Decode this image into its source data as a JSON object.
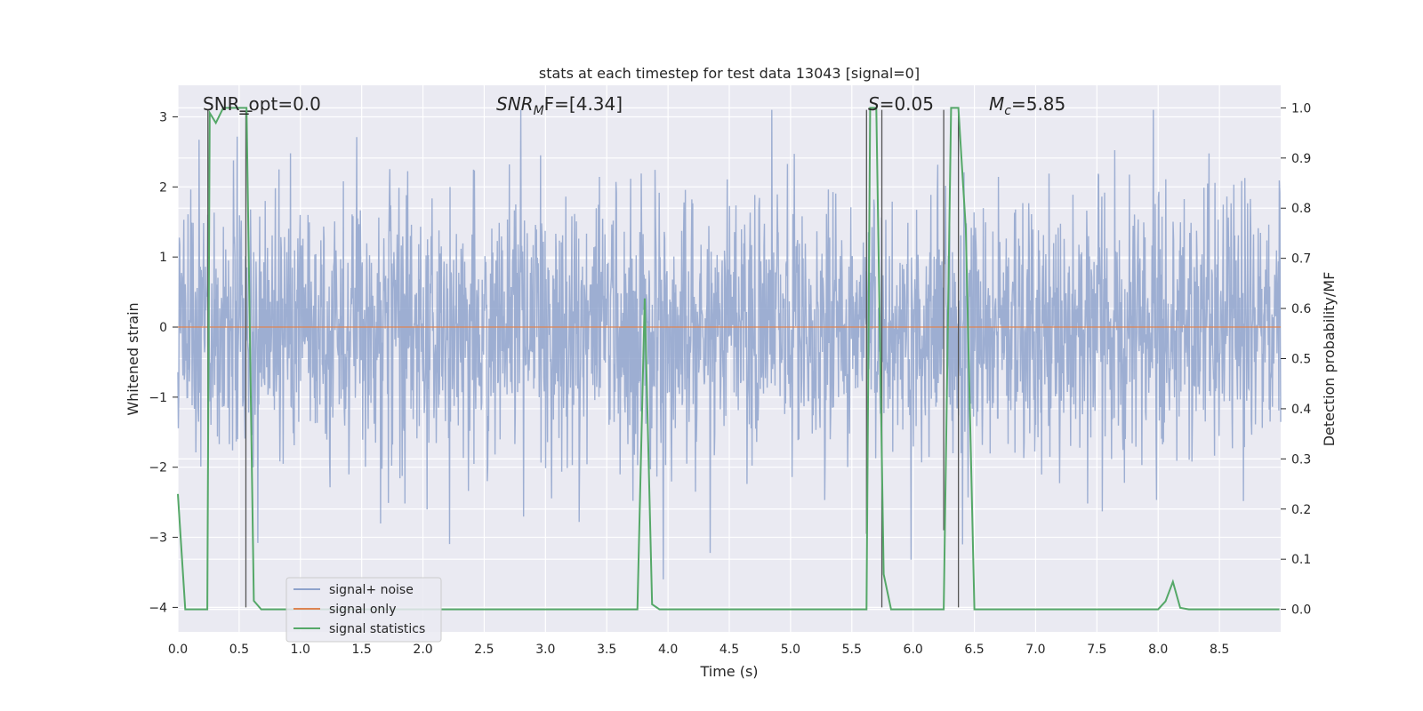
{
  "chart_data": {
    "type": "line",
    "title": "stats at each timestep for test data 13043 [signal=0]",
    "xlabel": "Time (s)",
    "ylabel": "Whitened strain",
    "y2label": "Detection probability/MF",
    "xlim": [
      0.0,
      9.0
    ],
    "ylim": [
      -4.35,
      3.45
    ],
    "y2lim": [
      -0.045,
      1.045
    ],
    "x_ticks": [
      0.0,
      0.5,
      1.0,
      1.5,
      2.0,
      2.5,
      3.0,
      3.5,
      4.0,
      4.5,
      5.0,
      5.5,
      6.0,
      6.5,
      7.0,
      7.5,
      8.0,
      8.5
    ],
    "x_tick_labels": [
      "0.0",
      "0.5",
      "1.0",
      "1.5",
      "2.0",
      "2.5",
      "3.0",
      "3.5",
      "4.0",
      "4.5",
      "5.0",
      "5.5",
      "6.0",
      "6.5",
      "7.0",
      "7.5",
      "8.0",
      "8.5"
    ],
    "y_ticks": [
      3,
      2,
      1,
      0,
      -1,
      -2,
      -3,
      -4
    ],
    "y_tick_labels": [
      "3",
      "2",
      "1",
      "0",
      "−1",
      "−2",
      "−3",
      "−4"
    ],
    "y2_ticks": [
      1.0,
      0.9,
      0.8,
      0.7,
      0.6,
      0.5,
      0.4,
      0.3,
      0.2,
      0.1,
      0.0
    ],
    "y2_tick_labels": [
      "1.0",
      "0.9",
      "0.8",
      "0.7",
      "0.6",
      "0.5",
      "0.4",
      "0.3",
      "0.2",
      "0.1",
      "0.0"
    ],
    "grid": true,
    "legend_position": "lower-left",
    "annotations": {
      "snr_opt": "SNR_opt=0.0",
      "snr_mf_var": "SNR",
      "snr_mf_sub": "M",
      "snr_mf_rest": "F=[4.34]",
      "s_var": "S",
      "s_rest": "=0.05",
      "mc_var": "M",
      "mc_sub": "c",
      "mc_rest": "=5.85"
    },
    "series": [
      {
        "name": "signal+ noise",
        "color": "#8fa3cc",
        "kind": "noise",
        "x_range": [
          0.0,
          9.0
        ],
        "envelope": 1.85
      },
      {
        "name": "signal only",
        "color": "#dd8452",
        "kind": "constant",
        "value": 0.0
      },
      {
        "name": "signal statistics",
        "color": "#55a868",
        "axis": "right",
        "x": [
          0.0,
          0.06,
          0.12,
          0.24,
          0.26,
          0.31,
          0.37,
          0.56,
          0.62,
          0.68,
          3.75,
          3.81,
          3.87,
          3.93,
          5.62,
          5.65,
          5.7,
          5.76,
          5.82,
          5.87,
          6.25,
          6.31,
          6.37,
          6.43,
          6.5,
          8.0,
          8.06,
          8.12,
          8.18,
          8.25,
          8.99
        ],
        "y": [
          0.23,
          0.0,
          0.0,
          0.0,
          0.99,
          0.97,
          1.0,
          1.0,
          0.017,
          0.0,
          0.0,
          0.62,
          0.01,
          0.0,
          0.0,
          1.0,
          1.0,
          0.07,
          0.0,
          0.0,
          0.0,
          1.0,
          1.0,
          0.76,
          0.0,
          0.0,
          0.016,
          0.055,
          0.003,
          0.0,
          0.0
        ]
      }
    ],
    "vertical_lines": [
      {
        "x": 0.245,
        "ymin": -2.45,
        "ymax": 3.1
      },
      {
        "x": 0.555,
        "ymin": -4.0,
        "ymax": 3.08
      },
      {
        "x": 5.62,
        "ymin": -2.95,
        "ymax": 3.1
      },
      {
        "x": 5.745,
        "ymin": -4.0,
        "ymax": 3.1
      },
      {
        "x": 6.25,
        "ymin": -2.9,
        "ymax": 3.1
      },
      {
        "x": 6.37,
        "ymin": -4.0,
        "ymax": 3.1
      }
    ],
    "marker": {
      "x": 0.555,
      "y": 3.08
    }
  }
}
